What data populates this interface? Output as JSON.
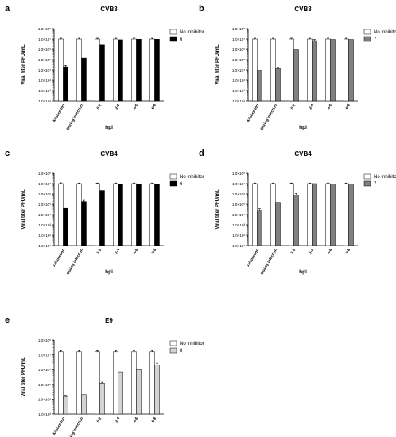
{
  "chart_data": [
    {
      "panel_letter": "a",
      "type": "bar",
      "title": "CVB3",
      "xlabel": "hpi",
      "ylabel": "Viral titer PFU/mL",
      "yscale": "log",
      "ylim": [
        10,
        100000000
      ],
      "ytick_labels": [
        "1.0×10¹",
        "1.0×10²",
        "1.0×10³",
        "1.0×10⁴",
        "1.0×10⁵",
        "1.0×10⁶",
        "1.0×10⁷",
        "1.0×10⁸"
      ],
      "categories": [
        "Adsorption",
        "During infection",
        "0-2",
        "2-4",
        "4-6",
        "6-8"
      ],
      "legend_position": "right",
      "series": [
        {
          "name": "No Inhibitor",
          "fill": "#ffffff",
          "values": [
            10000000,
            10000000,
            10000000,
            10000000,
            10000000,
            10000000
          ],
          "errors": [
            2000000,
            2000000,
            2000000,
            2000000,
            2000000,
            2000000
          ]
        },
        {
          "name": "6",
          "fill": "#000000",
          "values": [
            20000,
            140000,
            2500000,
            8500000,
            9500000,
            9500000
          ],
          "errors": [
            7000,
            0,
            0,
            0,
            0,
            0
          ]
        }
      ]
    },
    {
      "panel_letter": "b",
      "type": "bar",
      "title": "CVB3",
      "xlabel": "hpi",
      "ylabel": "Viral titer PFU/mL",
      "yscale": "log",
      "ylim": [
        10,
        100000000
      ],
      "ytick_labels": [
        "1.0×10¹",
        "1.0×10²",
        "1.0×10³",
        "1.0×10⁴",
        "1.0×10⁵",
        "1.0×10⁶",
        "1.0×10⁷",
        "1.0×10⁸"
      ],
      "categories": [
        "Adsorption",
        "During infection",
        "0-2",
        "2-4",
        "4-6",
        "6-8"
      ],
      "legend_position": "right",
      "series": [
        {
          "name": "No Inhibitor",
          "fill": "#ffffff",
          "values": [
            10000000,
            10000000,
            10000000,
            10000000,
            10000000,
            10000000
          ],
          "errors": [
            2000000,
            2000000,
            2000000,
            2000000,
            2000000,
            2000000
          ]
        },
        {
          "name": "7",
          "fill": "#808080",
          "values": [
            9000,
            14000,
            900000,
            7000000,
            9000000,
            9000000
          ],
          "errors": [
            0,
            4000,
            0,
            2000000,
            0,
            0
          ]
        }
      ]
    },
    {
      "panel_letter": "c",
      "type": "bar",
      "title": "CVB4",
      "xlabel": "hpi",
      "ylabel": "Viral titer PFU/mL",
      "yscale": "log",
      "ylim": [
        10,
        100000000
      ],
      "ytick_labels": [
        "1.0×10¹",
        "1.0×10²",
        "1.0×10³",
        "1.0×10⁴",
        "1.0×10⁵",
        "1.0×10⁶",
        "1.0×10⁷",
        "1.0×10⁸"
      ],
      "categories": [
        "Adsorption",
        "During infection",
        "0-2",
        "2-4",
        "4-6",
        "6-8"
      ],
      "legend_position": "right",
      "series": [
        {
          "name": "No Inhibitor",
          "fill": "#ffffff",
          "values": [
            10000000,
            10000000,
            10000000,
            10000000,
            10000000,
            10000000
          ],
          "errors": [
            2000000,
            1500000,
            1500000,
            1500000,
            1500000,
            1500000
          ]
        },
        {
          "name": "6",
          "fill": "#000000",
          "values": [
            40000,
            180000,
            2200000,
            8500000,
            9000000,
            9000000
          ],
          "errors": [
            0,
            60000,
            0,
            0,
            0,
            0
          ]
        }
      ]
    },
    {
      "panel_letter": "d",
      "type": "bar",
      "title": "CVB4",
      "xlabel": "hpi",
      "ylabel": "Viral titer PFU/mL",
      "yscale": "log",
      "ylim": [
        10,
        100000000
      ],
      "ytick_labels": [
        "1.0×10¹",
        "1.0×10²",
        "1.0×10³",
        "1.0×10⁴",
        "1.0×10⁵",
        "1.0×10⁶",
        "1.0×10⁷",
        "1.0×10⁸"
      ],
      "categories": [
        "Adsorption",
        "During infection",
        "0-2",
        "2-4",
        "4-6",
        "6-8"
      ],
      "legend_position": "right",
      "series": [
        {
          "name": "No Inhibitor",
          "fill": "#ffffff",
          "values": [
            10000000,
            10000000,
            10000000,
            10000000,
            10000000,
            10000000
          ],
          "errors": [
            1500000,
            1500000,
            1500000,
            1500000,
            1500000,
            1500000
          ]
        },
        {
          "name": "7",
          "fill": "#808080",
          "values": [
            25000,
            150000,
            800000,
            10000000,
            9000000,
            9000000
          ],
          "errors": [
            12000,
            0,
            300000,
            0,
            0,
            0
          ]
        }
      ]
    },
    {
      "panel_letter": "e",
      "type": "bar",
      "title": "E9",
      "xlabel": "hpi",
      "ylabel": "Viral titer PFU/mL",
      "yscale": "log",
      "ylim": [
        1000,
        100000000
      ],
      "ytick_labels": [
        "1.0×10³",
        "1.0×10⁴",
        "1.0×10⁵",
        "1.0×10⁶",
        "1.0×10⁷",
        "1.0×10⁸"
      ],
      "categories": [
        "Adsorption",
        "During infection",
        "0-2",
        "2-4",
        "4-6",
        "6-8"
      ],
      "legend_position": "right",
      "series": [
        {
          "name": "No Inhibitor",
          "fill": "#ffffff",
          "values": [
            16000000,
            16000000,
            16000000,
            16000000,
            16000000,
            16000000
          ],
          "errors": [
            3000000,
            3000000,
            3000000,
            3000000,
            3000000,
            3000000
          ]
        },
        {
          "name": "8",
          "fill": "#d3d3d3",
          "values": [
            15000,
            20000,
            120000,
            700000,
            1000000,
            2000000
          ],
          "errors": [
            3000,
            0,
            20000,
            0,
            0,
            700000
          ]
        }
      ]
    }
  ]
}
